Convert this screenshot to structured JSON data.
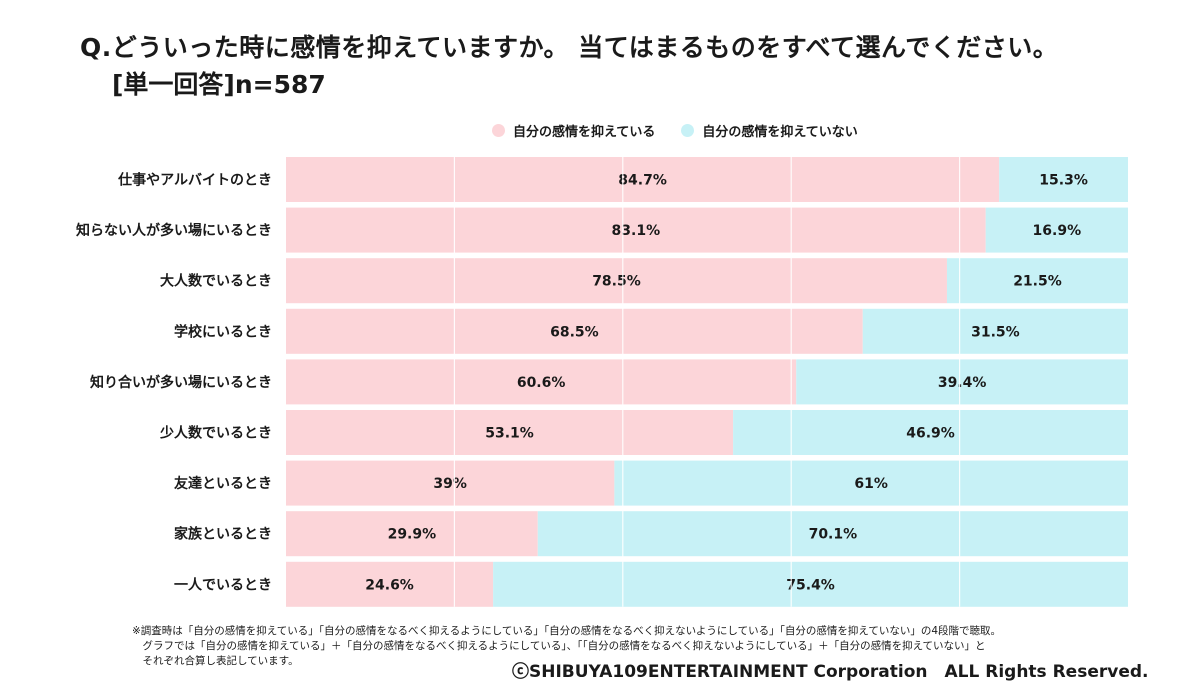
{
  "header": {
    "question": "Q.どういった時に感情を抑えていますか。 当てはまるものをすべて選んでください。",
    "sample": "[単一回答]n=587"
  },
  "colors": {
    "suppress": "#fcd5d9",
    "not_suppress": "#c7f1f6",
    "grid": "#ffffff"
  },
  "chart_data": {
    "type": "bar",
    "orientation": "horizontal",
    "stacked": true,
    "normalized": true,
    "xlim": [
      0,
      100
    ],
    "legend_position": "top",
    "categories": [
      "仕事やアルバイトのとき",
      "知らない人が多い場にいるとき",
      "大人数でいるとき",
      "学校にいるとき",
      "知り合いが多い場にいるとき",
      "少人数でいるとき",
      "友達といるとき",
      "家族といるとき",
      "一人でいるとき"
    ],
    "series": [
      {
        "name": "自分の感情を抑えている",
        "values": [
          84.7,
          83.1,
          78.5,
          68.5,
          60.6,
          53.1,
          39,
          29.9,
          24.6
        ],
        "labels": [
          "84.7%",
          "83.1%",
          "78.5%",
          "68.5%",
          "60.6%",
          "53.1%",
          "39%",
          "29.9%",
          "24.6%"
        ]
      },
      {
        "name": "自分の感情を抑えていない",
        "values": [
          15.3,
          16.9,
          21.5,
          31.5,
          39.4,
          46.9,
          61,
          70.1,
          75.4
        ],
        "labels": [
          "15.3%",
          "16.9%",
          "21.5%",
          "31.5%",
          "39.4%",
          "46.9%",
          "61%",
          "70.1%",
          "75.4%"
        ]
      }
    ]
  },
  "notes": [
    "※調査時は「自分の感情を抑えている」「自分の感情をなるべく抑えるようにしている」「自分の感情をなるべく抑えないようにしている」「自分の感情を抑えていない」の4段階で聴取。",
    "　グラフでは「自分の感情を抑えている」＋「自分の感情をなるべく抑えるようにしている」、「「自分の感情をなるべく抑えないようにしている」＋「自分の感情を抑えていない」と",
    "　それぞれ合算し表記しています。"
  ],
  "copyright": "ⓒSHIBUYA109ENTERTAINMENT Corporation　ALL Rights Reserved."
}
